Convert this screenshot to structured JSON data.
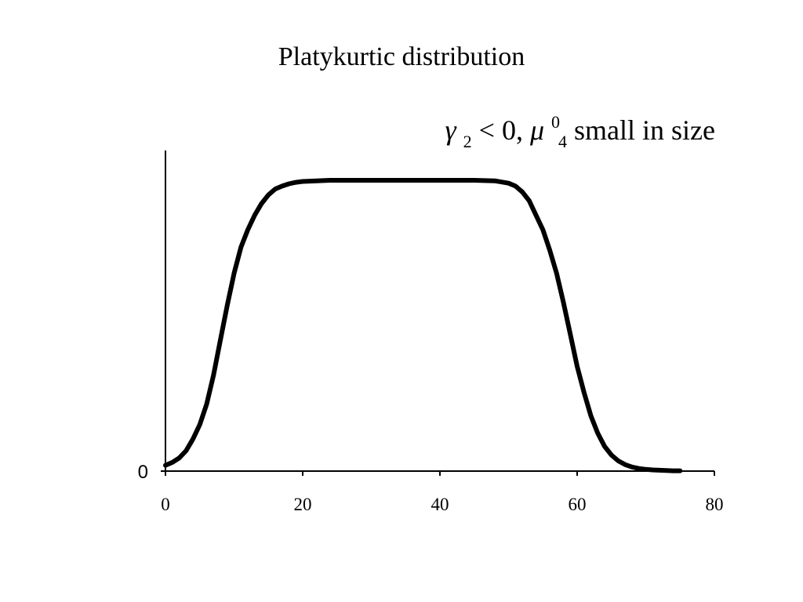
{
  "chart_data": {
    "type": "line",
    "title": "Platykurtic distribution",
    "annotation": {
      "gamma_symbol": "γ",
      "gamma_subscript": "2",
      "relation": " < 0, ",
      "mu_symbol": "μ",
      "mu_superscript": "0",
      "mu_subscript": "4",
      "trailing_text": " small in size"
    },
    "xlabel": "",
    "ylabel": "",
    "xlim": [
      0,
      80
    ],
    "x_ticks": [
      0,
      20,
      40,
      60,
      80
    ],
    "x_tick_labels": [
      "0",
      "20",
      "40",
      "60",
      "80"
    ],
    "y_tick_labels": [
      "0"
    ],
    "y_max_relative": 1.0,
    "grid": false,
    "legend": "none",
    "line_color": "#000000",
    "series": [
      {
        "x": [
          0,
          1,
          2,
          3,
          4,
          5,
          6,
          7,
          8,
          9,
          10,
          11,
          12,
          13,
          14,
          15,
          16,
          17,
          18,
          19,
          20,
          22,
          24,
          26,
          30,
          35,
          40,
          45,
          48,
          50,
          51,
          52,
          53,
          54,
          55,
          56,
          57,
          58,
          59,
          60,
          61,
          62,
          63,
          64,
          65,
          66,
          67,
          68,
          69,
          70,
          71,
          72,
          73,
          74,
          75
        ],
        "y": [
          0.02,
          0.03,
          0.045,
          0.07,
          0.11,
          0.16,
          0.23,
          0.33,
          0.45,
          0.57,
          0.68,
          0.77,
          0.83,
          0.88,
          0.92,
          0.95,
          0.97,
          0.98,
          0.988,
          0.993,
          0.996,
          0.998,
          1.0,
          1.0,
          1.0,
          1.0,
          1.0,
          1.0,
          0.998,
          0.99,
          0.98,
          0.96,
          0.93,
          0.88,
          0.83,
          0.76,
          0.68,
          0.58,
          0.47,
          0.36,
          0.27,
          0.19,
          0.13,
          0.085,
          0.055,
          0.035,
          0.022,
          0.014,
          0.009,
          0.006,
          0.004,
          0.003,
          0.002,
          0.001,
          0.001
        ]
      }
    ]
  }
}
